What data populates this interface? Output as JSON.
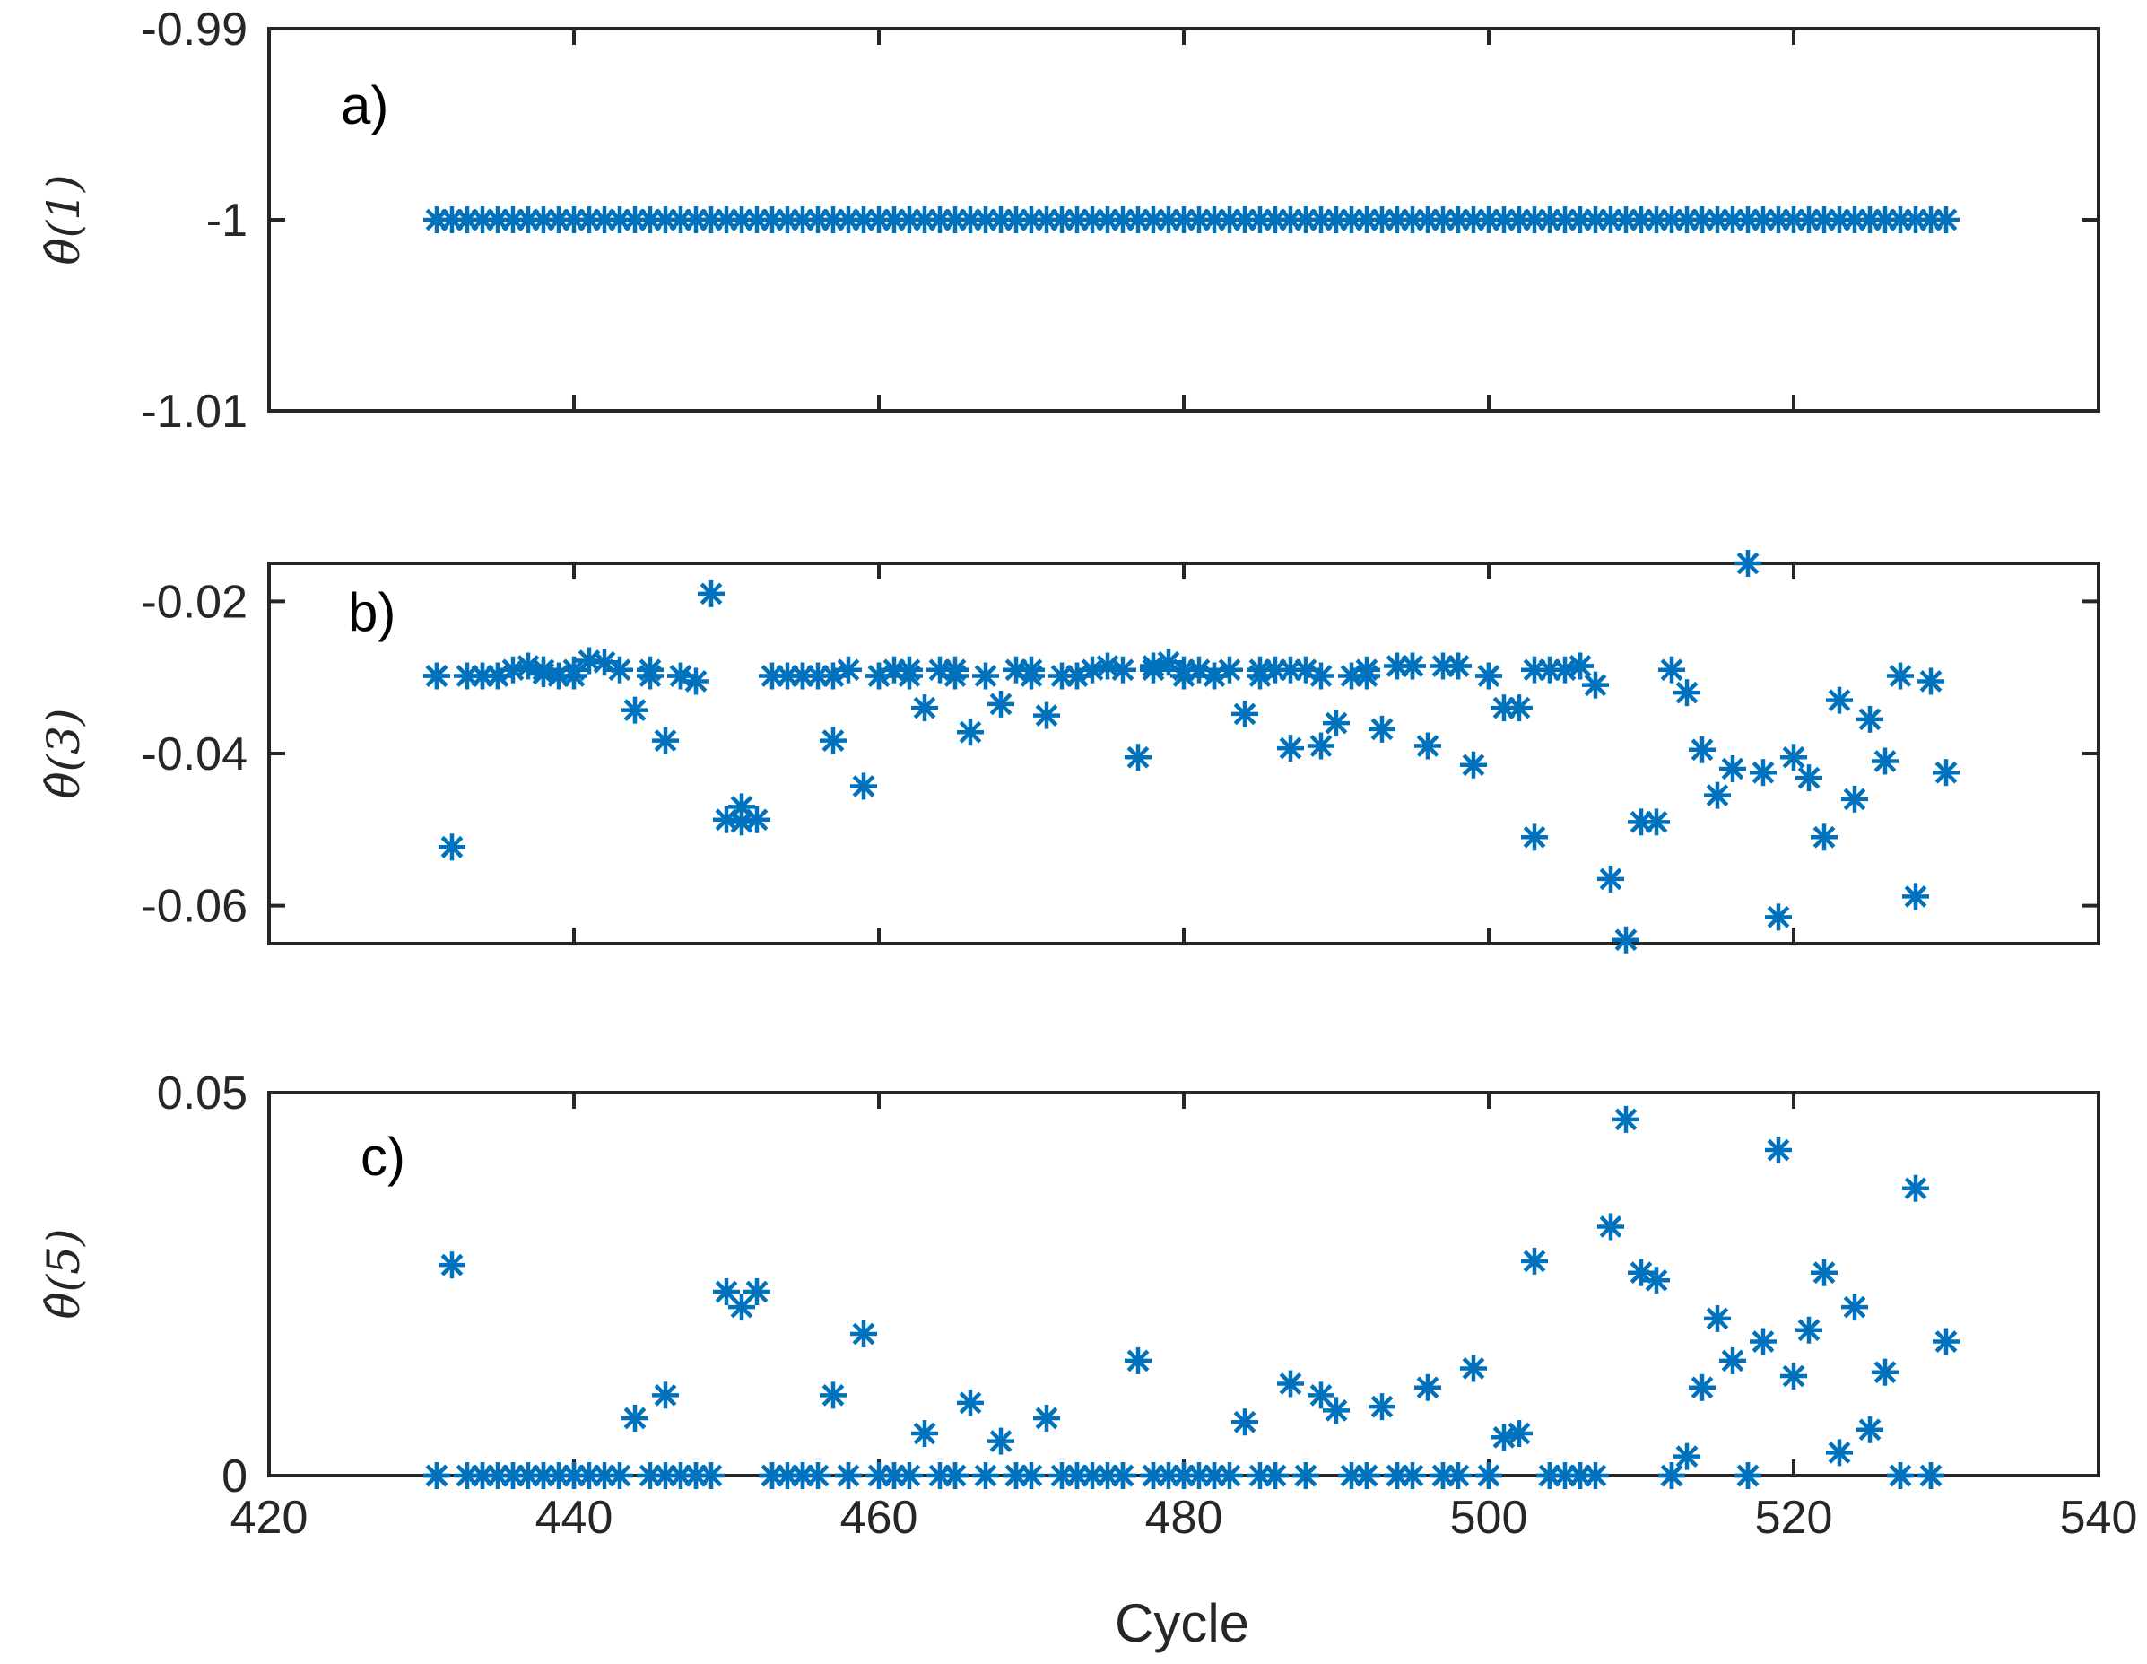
{
  "colors": {
    "marker": "#0072BD",
    "axis": "#262626"
  },
  "chart_data": [
    {
      "type": "scatter",
      "panel_label": "a)",
      "ylabel": "θ̂(1)",
      "xlabel": "",
      "xlim": [
        420,
        540
      ],
      "ylim": [
        -1.01,
        -0.99
      ],
      "xticks": [
        420,
        440,
        460,
        480,
        500,
        520,
        540
      ],
      "show_xtick_labels": false,
      "yticks": [
        {
          "value": -0.99,
          "label": "-0.99"
        },
        {
          "value": -1.0,
          "label": "-1"
        },
        {
          "value": -1.01,
          "label": "-1.01"
        }
      ],
      "marker": "asterisk",
      "x_range": [
        431,
        530
      ],
      "constant_y": -1.0,
      "series": [
        {
          "name": "θ̂(1)",
          "x_start": 431,
          "x_end": 530,
          "x_step": 1,
          "y_constant": -1.0
        }
      ]
    },
    {
      "type": "scatter",
      "panel_label": "b)",
      "ylabel": "θ̂(3)",
      "xlabel": "",
      "xlim": [
        420,
        540
      ],
      "ylim": [
        -0.065,
        -0.015
      ],
      "xticks": [
        420,
        440,
        460,
        480,
        500,
        520,
        540
      ],
      "show_xtick_labels": false,
      "yticks": [
        {
          "value": -0.02,
          "label": "-0.02"
        },
        {
          "value": -0.04,
          "label": "-0.04"
        },
        {
          "value": -0.06,
          "label": "-0.06"
        }
      ],
      "marker": "asterisk",
      "series": [
        {
          "name": "θ̂(3)",
          "x": [
            431,
            432,
            433,
            434,
            435,
            436,
            437,
            438,
            439,
            440,
            441,
            442,
            443,
            444,
            445,
            446,
            447,
            448,
            449,
            450,
            451,
            452,
            453,
            454,
            455,
            456,
            457,
            458,
            459,
            460,
            461,
            462,
            463,
            464,
            465,
            466,
            467,
            468,
            469,
            470,
            471,
            472,
            473,
            474,
            475,
            476,
            477,
            478,
            479,
            480,
            481,
            482,
            483,
            484,
            485,
            486,
            487,
            488,
            489,
            490,
            491,
            492,
            493,
            494,
            495,
            496,
            497,
            498,
            499,
            500,
            501,
            502,
            503,
            504,
            505,
            506,
            507,
            508,
            509,
            510,
            511,
            512,
            513,
            514,
            515,
            516,
            517,
            518,
            519,
            520,
            521,
            522,
            523,
            524,
            525,
            526,
            527,
            528,
            529,
            530,
            431,
            434,
            435,
            438,
            440,
            445,
            447,
            451,
            455,
            457,
            460,
            462,
            465,
            470,
            473,
            478,
            480,
            482,
            485,
            487,
            489,
            492,
            495,
            498,
            500,
            503,
            506
          ],
          "y": [
            -0.0298,
            -0.0523,
            -0.0298,
            -0.0298,
            -0.0298,
            -0.029,
            -0.0285,
            -0.0295,
            -0.0298,
            -0.029,
            -0.0278,
            -0.028,
            -0.029,
            -0.0343,
            -0.0298,
            -0.0383,
            -0.0298,
            -0.0305,
            -0.019,
            -0.0487,
            -0.047,
            -0.0487,
            -0.0298,
            -0.0298,
            -0.0298,
            -0.0298,
            -0.0383,
            -0.029,
            -0.0443,
            -0.0298,
            -0.029,
            -0.0298,
            -0.034,
            -0.029,
            -0.029,
            -0.0372,
            -0.0298,
            -0.0335,
            -0.029,
            -0.029,
            -0.035,
            -0.0298,
            -0.0298,
            -0.029,
            -0.0285,
            -0.029,
            -0.0405,
            -0.0285,
            -0.028,
            -0.029,
            -0.029,
            -0.0298,
            -0.029,
            -0.0348,
            -0.029,
            -0.029,
            -0.0393,
            -0.029,
            -0.039,
            -0.036,
            -0.0298,
            -0.029,
            -0.0368,
            -0.0285,
            -0.0285,
            -0.039,
            -0.0285,
            -0.0285,
            -0.0415,
            -0.0298,
            -0.034,
            -0.034,
            -0.051,
            -0.029,
            -0.029,
            -0.0285,
            -0.031,
            -0.0565,
            -0.0645,
            -0.049,
            -0.049,
            -0.029,
            -0.032,
            -0.0395,
            -0.0455,
            -0.042,
            -0.015,
            -0.0425,
            -0.0615,
            -0.0405,
            -0.0432,
            -0.051,
            -0.033,
            -0.046,
            -0.0355,
            -0.041,
            -0.0298,
            -0.0588,
            -0.0305,
            -0.0425,
            -0.0298,
            -0.0298,
            -0.0298,
            -0.029,
            -0.0298,
            -0.029,
            -0.0298,
            -0.049,
            -0.0298,
            -0.0298,
            -0.0298,
            -0.029,
            -0.0298,
            -0.0298,
            -0.0298,
            -0.029,
            -0.0298,
            -0.0298,
            -0.0298,
            -0.029,
            -0.0298,
            -0.0298,
            -0.0285,
            -0.0285,
            -0.0298,
            -0.029,
            -0.0285
          ]
        }
      ]
    },
    {
      "type": "scatter",
      "panel_label": "c)",
      "ylabel": "θ̂(5)",
      "xlabel": "Cycle",
      "xlim": [
        420,
        540
      ],
      "ylim": [
        0,
        0.05
      ],
      "xticks": [
        420,
        440,
        460,
        480,
        500,
        520,
        540
      ],
      "xtick_labels": [
        "420",
        "440",
        "460",
        "480",
        "500",
        "520",
        "540"
      ],
      "show_xtick_labels": true,
      "yticks": [
        {
          "value": 0.05,
          "label": "0.05"
        },
        {
          "value": 0.0,
          "label": "0"
        }
      ],
      "marker": "asterisk",
      "series": [
        {
          "name": "θ̂(5)",
          "x": [
            431,
            432,
            433,
            434,
            435,
            436,
            437,
            438,
            439,
            440,
            441,
            442,
            443,
            444,
            445,
            446,
            447,
            448,
            449,
            450,
            451,
            452,
            453,
            454,
            455,
            456,
            457,
            458,
            459,
            460,
            461,
            462,
            463,
            464,
            465,
            466,
            467,
            468,
            469,
            470,
            471,
            472,
            473,
            474,
            475,
            476,
            477,
            478,
            479,
            480,
            481,
            482,
            483,
            484,
            485,
            486,
            487,
            488,
            489,
            490,
            491,
            492,
            493,
            494,
            495,
            496,
            497,
            498,
            499,
            500,
            501,
            502,
            503,
            504,
            505,
            506,
            507,
            508,
            509,
            510,
            511,
            512,
            513,
            514,
            515,
            516,
            517,
            518,
            519,
            520,
            521,
            522,
            523,
            524,
            525,
            526,
            527,
            528,
            529,
            530,
            431,
            434,
            436,
            438,
            440,
            446,
            448,
            453,
            455,
            458,
            461,
            465,
            469,
            473,
            476,
            478,
            480,
            482,
            486,
            488,
            492,
            494,
            497,
            500,
            504,
            506,
            512,
            517,
            527,
            529
          ],
          "y": [
            0.0,
            0.0275,
            0.0,
            0.0,
            0.0,
            0.0,
            0.0,
            0.0,
            0.0,
            0.0,
            0.0,
            0.0,
            0.0,
            0.0075,
            0.0,
            0.0105,
            0.0,
            0.0,
            0.0,
            0.024,
            0.022,
            0.024,
            0.0,
            0.0,
            0.0,
            0.0,
            0.0105,
            0.0,
            0.0185,
            0.0,
            0.0,
            0.0,
            0.0055,
            0.0,
            0.0,
            0.0095,
            0.0,
            0.0045,
            0.0,
            0.0,
            0.0075,
            0.0,
            0.0,
            0.0,
            0.0,
            0.0,
            0.015,
            0.0,
            0.0,
            0.0,
            0.0,
            0.0,
            0.0,
            0.007,
            0.0,
            0.0,
            0.012,
            0.0,
            0.0105,
            0.0085,
            0.0,
            0.0,
            0.009,
            0.0,
            0.0,
            0.0115,
            0.0,
            0.0,
            0.014,
            0.0,
            0.005,
            0.0055,
            0.028,
            0.0,
            0.0,
            0.0,
            0.0,
            0.0325,
            0.0465,
            0.0265,
            0.0255,
            0.0,
            0.0025,
            0.0115,
            0.0205,
            0.015,
            0.0,
            0.0175,
            0.0425,
            0.013,
            0.019,
            0.0265,
            0.003,
            0.022,
            0.006,
            0.0135,
            0.0,
            0.0375,
            0.0,
            0.0175,
            0.0,
            0.0,
            0.0,
            0.0,
            0.0,
            0.0,
            0.0,
            0.0,
            0.0,
            0.0,
            0.0,
            0.0,
            0.0,
            0.0,
            0.0,
            0.0,
            0.0,
            0.0,
            0.0,
            0.0,
            0.0,
            0.0,
            0.0,
            0.0,
            0.0,
            0.0,
            0.0,
            0.0,
            0.0,
            0.0
          ]
        }
      ]
    }
  ]
}
